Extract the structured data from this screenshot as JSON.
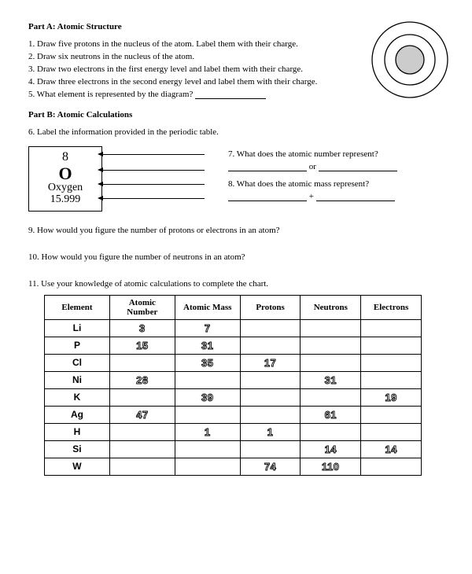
{
  "partA": {
    "heading": "Part A:  Atomic Structure",
    "q1": "1.  Draw five protons in the nucleus of the atom.  Label them with their charge.",
    "q2": "2.  Draw six neutrons in the nucleus of the atom.",
    "q3": "3.  Draw two electrons in the first energy level and label them with their charge.",
    "q4": "4. Draw three electrons in the second energy level and label them with their charge.",
    "q5_pre": "5.  What element is represented by the diagram? ",
    "atom": {
      "outer_r": 48,
      "mid_r": 32,
      "inner_r": 18,
      "stroke": "#000000",
      "fill_inner": "#cccccc",
      "bg": "#ffffff"
    }
  },
  "partB": {
    "heading": "Part B:  Atomic Calculations",
    "q6": "6.  Label the information provided in the periodic table.",
    "element_box": {
      "atomic_number": "8",
      "symbol": "O",
      "name": "Oxygen",
      "mass": "15.999"
    },
    "q7": "7. What does the atomic number represent?",
    "q7_sep": " or ",
    "q8": "8. What does the atomic mass represent?",
    "q8_sep": " + ",
    "q9": "9. How would you figure the number of protons or electrons in an atom?",
    "q10": "10. How would you figure the number of neutrons in an atom?",
    "q11": "11.  Use your knowledge of atomic calculations to complete the chart."
  },
  "chart": {
    "columns": [
      "Element",
      "Atomic Number",
      "Atomic Mass",
      "Protons",
      "Neutrons",
      "Electrons"
    ],
    "col_widths": [
      "72px",
      "72px",
      "72px",
      "66px",
      "66px",
      "66px"
    ],
    "rows": [
      {
        "el": "Li",
        "an": "3",
        "am": "7",
        "p": "",
        "n": "",
        "e": ""
      },
      {
        "el": "P",
        "an": "15",
        "am": "31",
        "p": "",
        "n": "",
        "e": ""
      },
      {
        "el": "Cl",
        "an": "",
        "am": "35",
        "p": "17",
        "n": "",
        "e": ""
      },
      {
        "el": "Ni",
        "an": "28",
        "am": "",
        "p": "",
        "n": "31",
        "e": ""
      },
      {
        "el": "K",
        "an": "",
        "am": "39",
        "p": "",
        "n": "",
        "e": "19"
      },
      {
        "el": "Ag",
        "an": "47",
        "am": "",
        "p": "",
        "n": "61",
        "e": ""
      },
      {
        "el": "H",
        "an": "",
        "am": "1",
        "p": "1",
        "n": "",
        "e": ""
      },
      {
        "el": "Si",
        "an": "",
        "am": "",
        "p": "",
        "n": "14",
        "e": "14"
      },
      {
        "el": "W",
        "an": "",
        "am": "",
        "p": "74",
        "n": "110",
        "e": ""
      }
    ]
  }
}
